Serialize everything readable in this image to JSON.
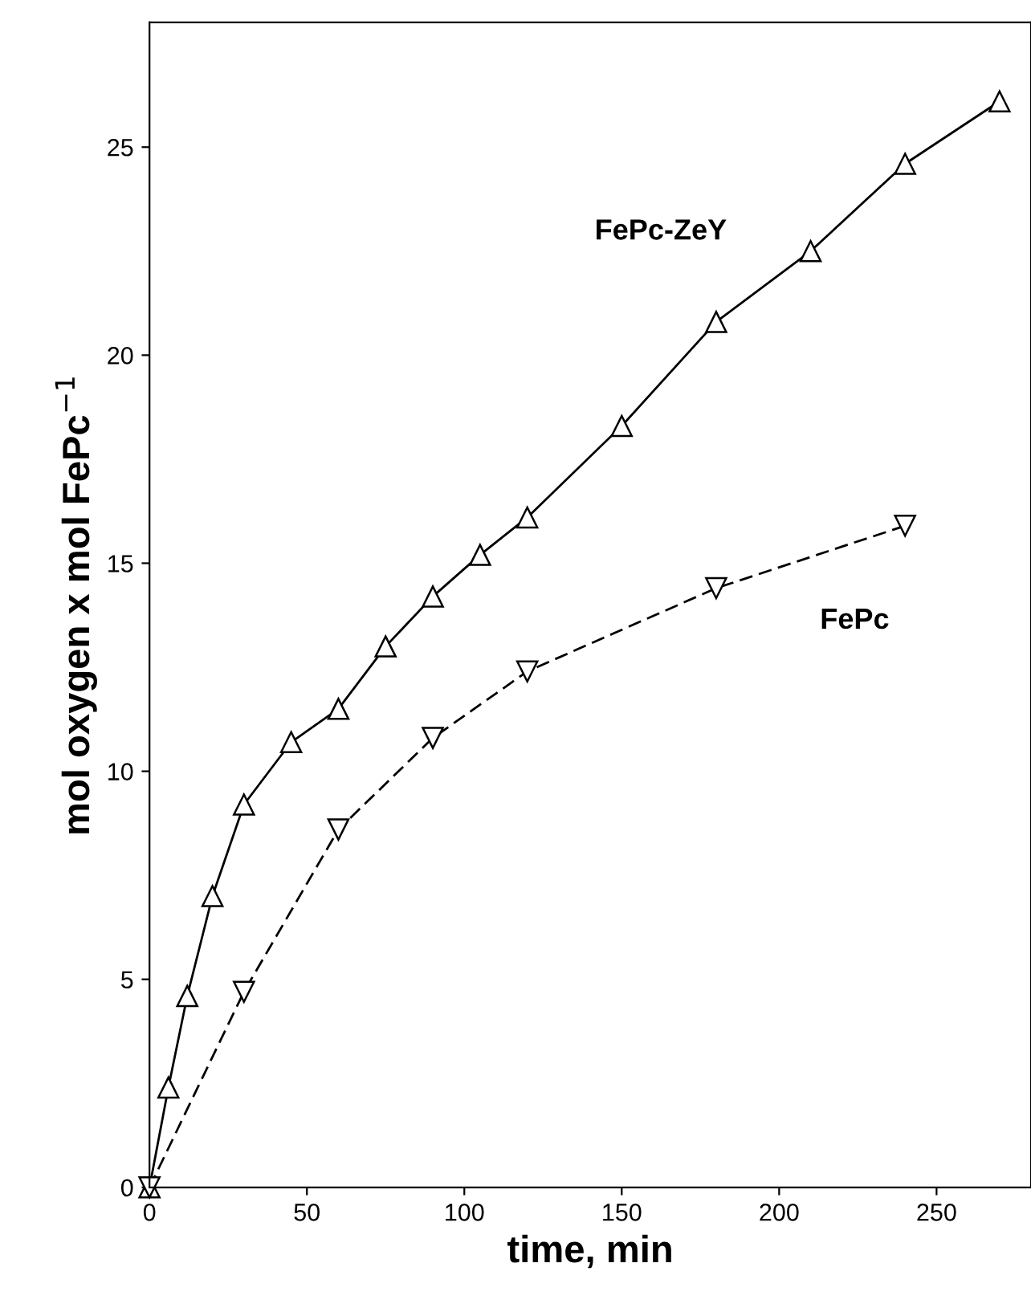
{
  "chart_data": {
    "type": "line",
    "xlabel": "time, min",
    "ylabel": "mol oxygen x mol FePc$^{−1}$",
    "xlim": [
      0,
      280
    ],
    "ylim": [
      0,
      28
    ],
    "xticks": [
      0,
      50,
      100,
      150,
      200,
      250
    ],
    "yticks": [
      0,
      5,
      10,
      15,
      20,
      25
    ],
    "grid": false,
    "legend": false,
    "series": [
      {
        "name": "FePc-ZeY",
        "color": "#000000",
        "marker": "triangle",
        "line_style": "solid",
        "x": [
          0,
          6,
          12,
          20,
          30,
          45,
          60,
          75,
          90,
          105,
          120,
          150,
          180,
          210,
          240,
          270
        ],
        "values": [
          0,
          2.4,
          4.6,
          7.0,
          9.2,
          10.7,
          11.5,
          13.0,
          14.2,
          15.2,
          16.1,
          18.3,
          20.8,
          22.5,
          24.6,
          26.1
        ]
      },
      {
        "name": "FePc",
        "color": "#000000",
        "marker": "triangle_down",
        "line_style": "dashed",
        "x": [
          0,
          30,
          60,
          90,
          120,
          180,
          240
        ],
        "values": [
          0,
          4.7,
          8.6,
          10.8,
          12.4,
          14.4,
          15.9
        ]
      }
    ]
  }
}
